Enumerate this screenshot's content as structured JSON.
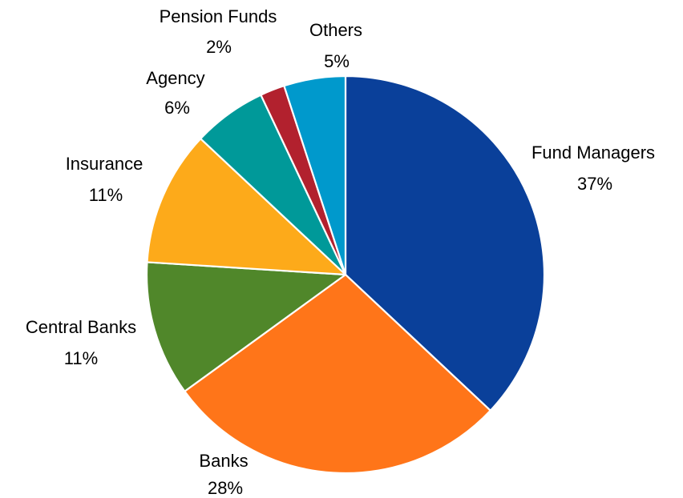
{
  "chart_data": {
    "type": "pie",
    "slices": [
      {
        "label": "Fund Managers",
        "value": 37,
        "value_label": "37%",
        "color": "#0A409A"
      },
      {
        "label": "Banks",
        "value": 28,
        "value_label": "28%",
        "color": "#FF7519"
      },
      {
        "label": "Central Banks",
        "value": 11,
        "value_label": "11%",
        "color": "#50872A"
      },
      {
        "label": "Insurance",
        "value": 11,
        "value_label": "11%",
        "color": "#FDAA1A"
      },
      {
        "label": "Agency",
        "value": 6,
        "value_label": "6%",
        "color": "#009999"
      },
      {
        "label": "Pension Funds",
        "value": 2,
        "value_label": "2%",
        "color": "#B2212E"
      },
      {
        "label": "Others",
        "value": 5,
        "value_label": "5%",
        "color": "#0099CC"
      }
    ],
    "start": "12 o'clock",
    "direction": "clockwise",
    "legend": "none",
    "labels": "outside"
  }
}
